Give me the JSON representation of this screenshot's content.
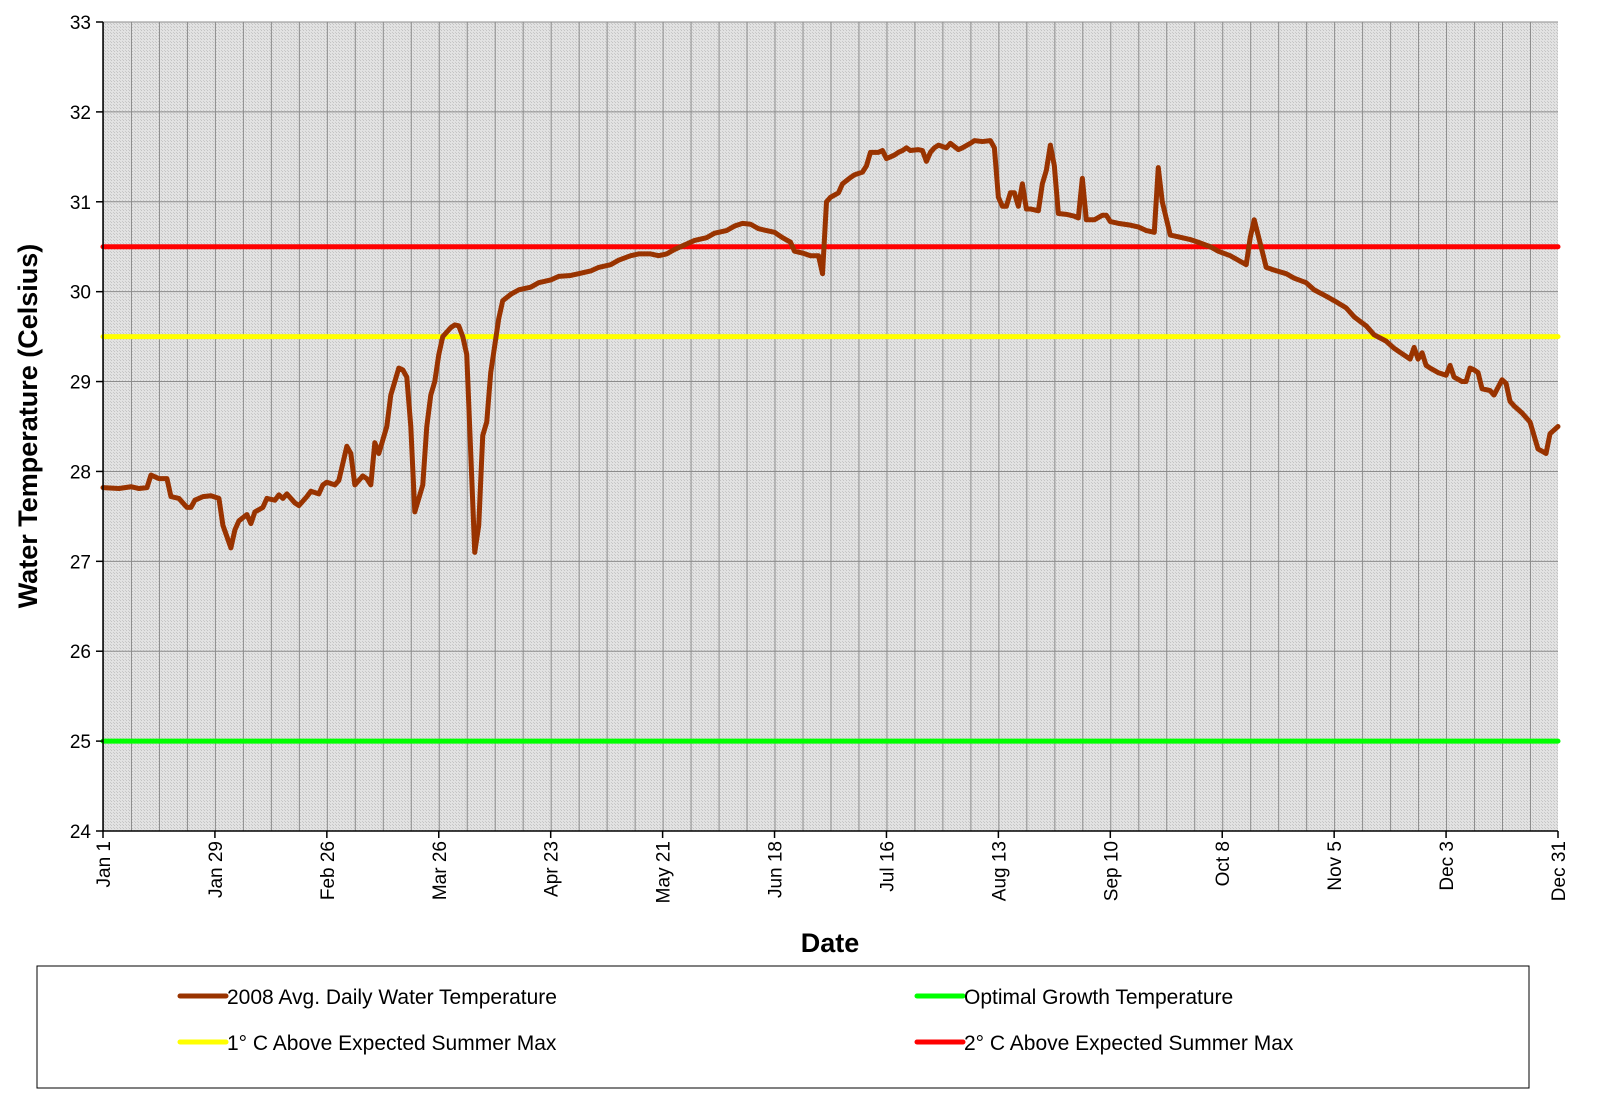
{
  "chart_data": {
    "type": "line",
    "xlabel": "Date",
    "ylabel": "Water Temperature (Celsius)",
    "xlim": [
      "Jan 1",
      "Dec 31"
    ],
    "xticks": [
      "Jan 1",
      "Jan 29",
      "Feb 26",
      "Mar 26",
      "Apr 23",
      "May 21",
      "Jun 18",
      "Jul 16",
      "Aug 13",
      "Sep 10",
      "Oct 8",
      "Nov 5",
      "Dec 3",
      "Dec 31"
    ],
    "ylim": [
      24,
      33
    ],
    "yticks": [
      24,
      25,
      26,
      27,
      28,
      29,
      30,
      31,
      32,
      33
    ],
    "grid": true,
    "legend": "bottom",
    "series": [
      {
        "name": "2008 Avg. Daily Water Temperature",
        "color": "#993300",
        "x": [
          "Jan 1",
          "Jan 5",
          "Jan 8",
          "Jan 10",
          "Jan 12",
          "Jan 13",
          "Jan 15",
          "Jan 17",
          "Jan 18",
          "Jan 20",
          "Jan 22",
          "Jan 23",
          "Jan 24",
          "Jan 26",
          "Jan 28",
          "Jan 30",
          "Jan 31",
          "Feb 2",
          "Feb 3",
          "Feb 4",
          "Feb 6",
          "Feb 7",
          "Feb 8",
          "Feb 10",
          "Feb 11",
          "Feb 13",
          "Feb 14",
          "Feb 15",
          "Feb 16",
          "Feb 18",
          "Feb 19",
          "Feb 21",
          "Feb 22",
          "Feb 24",
          "Feb 25",
          "Feb 26",
          "Feb 28",
          "Mar 1",
          "Mar 3",
          "Mar 4",
          "Mar 5",
          "Mar 7",
          "Mar 8",
          "Mar 9",
          "Mar 10",
          "Mar 11",
          "Mar 13",
          "Mar 14",
          "Mar 16",
          "Mar 17",
          "Mar 18",
          "Mar 19",
          "Mar 20",
          "Mar 21",
          "Mar 22",
          "Mar 23",
          "Mar 24",
          "Mar 25",
          "Mar 26",
          "Mar 27",
          "Mar 29",
          "Mar 30",
          "Mar 31",
          "Apr 1",
          "Apr 2",
          "Apr 3",
          "Apr 4",
          "Apr 5",
          "Apr 6",
          "Apr 7",
          "Apr 8",
          "Apr 10",
          "Apr 11",
          "Apr 13",
          "Apr 15",
          "Apr 18",
          "Apr 20",
          "Apr 23",
          "Apr 25",
          "Apr 28",
          "Apr 30",
          "May 3",
          "May 5",
          "May 8",
          "May 10",
          "May 13",
          "May 15",
          "May 18",
          "May 20",
          "May 22",
          "May 24",
          "May 27",
          "May 29",
          "Jun 1",
          "Jun 3",
          "Jun 6",
          "Jun 8",
          "Jun 10",
          "Jun 12",
          "Jun 14",
          "Jun 16",
          "Jun 18",
          "Jun 20",
          "Jun 22",
          "Jun 23",
          "Jun 25",
          "Jun 27",
          "Jun 29",
          "Jun 30",
          "Jul 1",
          "Jul 2",
          "Jul 4",
          "Jul 5",
          "Jul 7",
          "Jul 8",
          "Jul 10",
          "Jul 11",
          "Jul 12",
          "Jul 14",
          "Jul 15",
          "Jul 16",
          "Jul 18",
          "Jul 19",
          "Jul 20",
          "Jul 21",
          "Jul 22",
          "Jul 24",
          "Jul 25",
          "Jul 26",
          "Jul 27",
          "Jul 28",
          "Jul 29",
          "Jul 31",
          "Aug 1",
          "Aug 3",
          "Aug 4",
          "Aug 6",
          "Aug 7",
          "Aug 9",
          "Aug 11",
          "Aug 12",
          "Aug 13",
          "Aug 14",
          "Aug 15",
          "Aug 16",
          "Aug 17",
          "Aug 18",
          "Aug 19",
          "Aug 20",
          "Aug 21",
          "Aug 23",
          "Aug 24",
          "Aug 25",
          "Aug 26",
          "Aug 27",
          "Aug 28",
          "Aug 30",
          "Sep 1",
          "Sep 2",
          "Sep 3",
          "Sep 4",
          "Sep 6",
          "Sep 8",
          "Sep 9",
          "Sep 10",
          "Sep 12",
          "Sep 15",
          "Sep 17",
          "Sep 19",
          "Sep 21",
          "Sep 22",
          "Sep 23",
          "Sep 25",
          "Sep 27",
          "Sep 30",
          "Oct 2",
          "Oct 5",
          "Oct 7",
          "Oct 10",
          "Oct 12",
          "Oct 14",
          "Oct 15",
          "Oct 16",
          "Oct 18",
          "Oct 19",
          "Oct 21",
          "Oct 24",
          "Oct 26",
          "Oct 29",
          "Oct 31",
          "Nov 3",
          "Nov 5",
          "Nov 8",
          "Nov 10",
          "Nov 13",
          "Nov 15",
          "Nov 18",
          "Nov 20",
          "Nov 23",
          "Nov 24",
          "Nov 25",
          "Nov 26",
          "Nov 27",
          "Nov 28",
          "Nov 29",
          "Dec 1",
          "Dec 3",
          "Dec 4",
          "Dec 5",
          "Dec 7",
          "Dec 8",
          "Dec 9",
          "Dec 10",
          "Dec 11",
          "Dec 12",
          "Dec 14",
          "Dec 15",
          "Dec 17",
          "Dec 18",
          "Dec 19",
          "Dec 20",
          "Dec 22",
          "Dec 24",
          "Dec 25",
          "Dec 26",
          "Dec 28",
          "Dec 29",
          "Dec 31"
        ],
        "values": [
          27.82,
          27.81,
          27.83,
          27.81,
          27.82,
          27.96,
          27.92,
          27.92,
          27.72,
          27.7,
          27.6,
          27.6,
          27.68,
          27.72,
          27.73,
          27.7,
          27.4,
          27.15,
          27.35,
          27.45,
          27.52,
          27.42,
          27.55,
          27.6,
          27.7,
          27.68,
          27.74,
          27.7,
          27.75,
          27.65,
          27.62,
          27.72,
          27.78,
          27.75,
          27.85,
          27.88,
          27.85,
          27.9,
          28.28,
          28.2,
          27.85,
          27.95,
          27.92,
          27.85,
          28.32,
          28.2,
          28.5,
          28.85,
          29.15,
          29.13,
          29.05,
          28.5,
          27.55,
          27.7,
          27.85,
          28.5,
          28.85,
          29.0,
          29.3,
          29.5,
          29.6,
          29.63,
          29.62,
          29.5,
          29.3,
          28.2,
          27.1,
          27.4,
          28.4,
          28.55,
          29.1,
          29.7,
          29.9,
          29.97,
          30.02,
          30.05,
          30.1,
          30.13,
          30.17,
          30.18,
          30.2,
          30.23,
          30.27,
          30.3,
          30.35,
          30.4,
          30.42,
          30.42,
          30.4,
          30.42,
          30.47,
          30.53,
          30.57,
          30.6,
          30.65,
          30.68,
          30.73,
          30.76,
          30.75,
          30.7,
          30.68,
          30.66,
          30.6,
          30.55,
          30.45,
          30.43,
          30.4,
          30.4,
          30.2,
          31.0,
          31.05,
          31.1,
          31.2,
          31.27,
          31.3,
          31.33,
          31.4,
          31.55,
          31.55,
          31.57,
          31.48,
          31.52,
          31.55,
          31.57,
          31.6,
          31.57,
          31.58,
          31.57,
          31.45,
          31.55,
          31.6,
          31.63,
          31.6,
          31.65,
          31.58,
          31.6,
          31.65,
          31.68,
          31.67,
          31.68,
          31.6,
          31.05,
          30.95,
          30.95,
          31.1,
          31.1,
          30.95,
          31.2,
          30.92,
          30.92,
          30.9,
          31.2,
          31.35,
          31.63,
          31.4,
          30.87,
          30.86,
          30.84,
          30.82,
          31.26,
          30.8,
          30.8,
          30.85,
          30.85,
          30.78,
          30.76,
          30.74,
          30.72,
          30.68,
          30.66,
          31.38,
          31.0,
          30.63,
          30.61,
          30.58,
          30.55,
          30.5,
          30.45,
          30.4,
          30.35,
          30.3,
          30.6,
          30.8,
          30.45,
          30.27,
          30.24,
          30.2,
          30.15,
          30.1,
          30.02,
          29.95,
          29.9,
          29.82,
          29.72,
          29.62,
          29.52,
          29.45,
          29.37,
          29.28,
          29.25,
          29.38,
          29.25,
          29.32,
          29.18,
          29.15,
          29.1,
          29.07,
          29.18,
          29.05,
          29.0,
          29.0,
          29.15,
          29.13,
          29.1,
          28.92,
          28.9,
          28.85,
          29.02,
          28.98,
          28.78,
          28.73,
          28.65,
          28.55,
          28.4,
          28.25,
          28.2,
          28.42,
          28.5
        ]
      },
      {
        "name": "Optimal Growth Temperature",
        "color": "#00ff00",
        "x": [
          "Jan 1",
          "Dec 31"
        ],
        "values": [
          25,
          25
        ]
      },
      {
        "name": "1° C Above Expected Summer Max",
        "color": "#ffff00",
        "x": [
          "Jan 1",
          "Dec 31"
        ],
        "values": [
          29.5,
          29.5
        ]
      },
      {
        "name": "2° C Above Expected Summer Max",
        "color": "#ff0000",
        "x": [
          "Jan 1",
          "Dec 31"
        ],
        "values": [
          30.5,
          30.5
        ]
      }
    ]
  }
}
